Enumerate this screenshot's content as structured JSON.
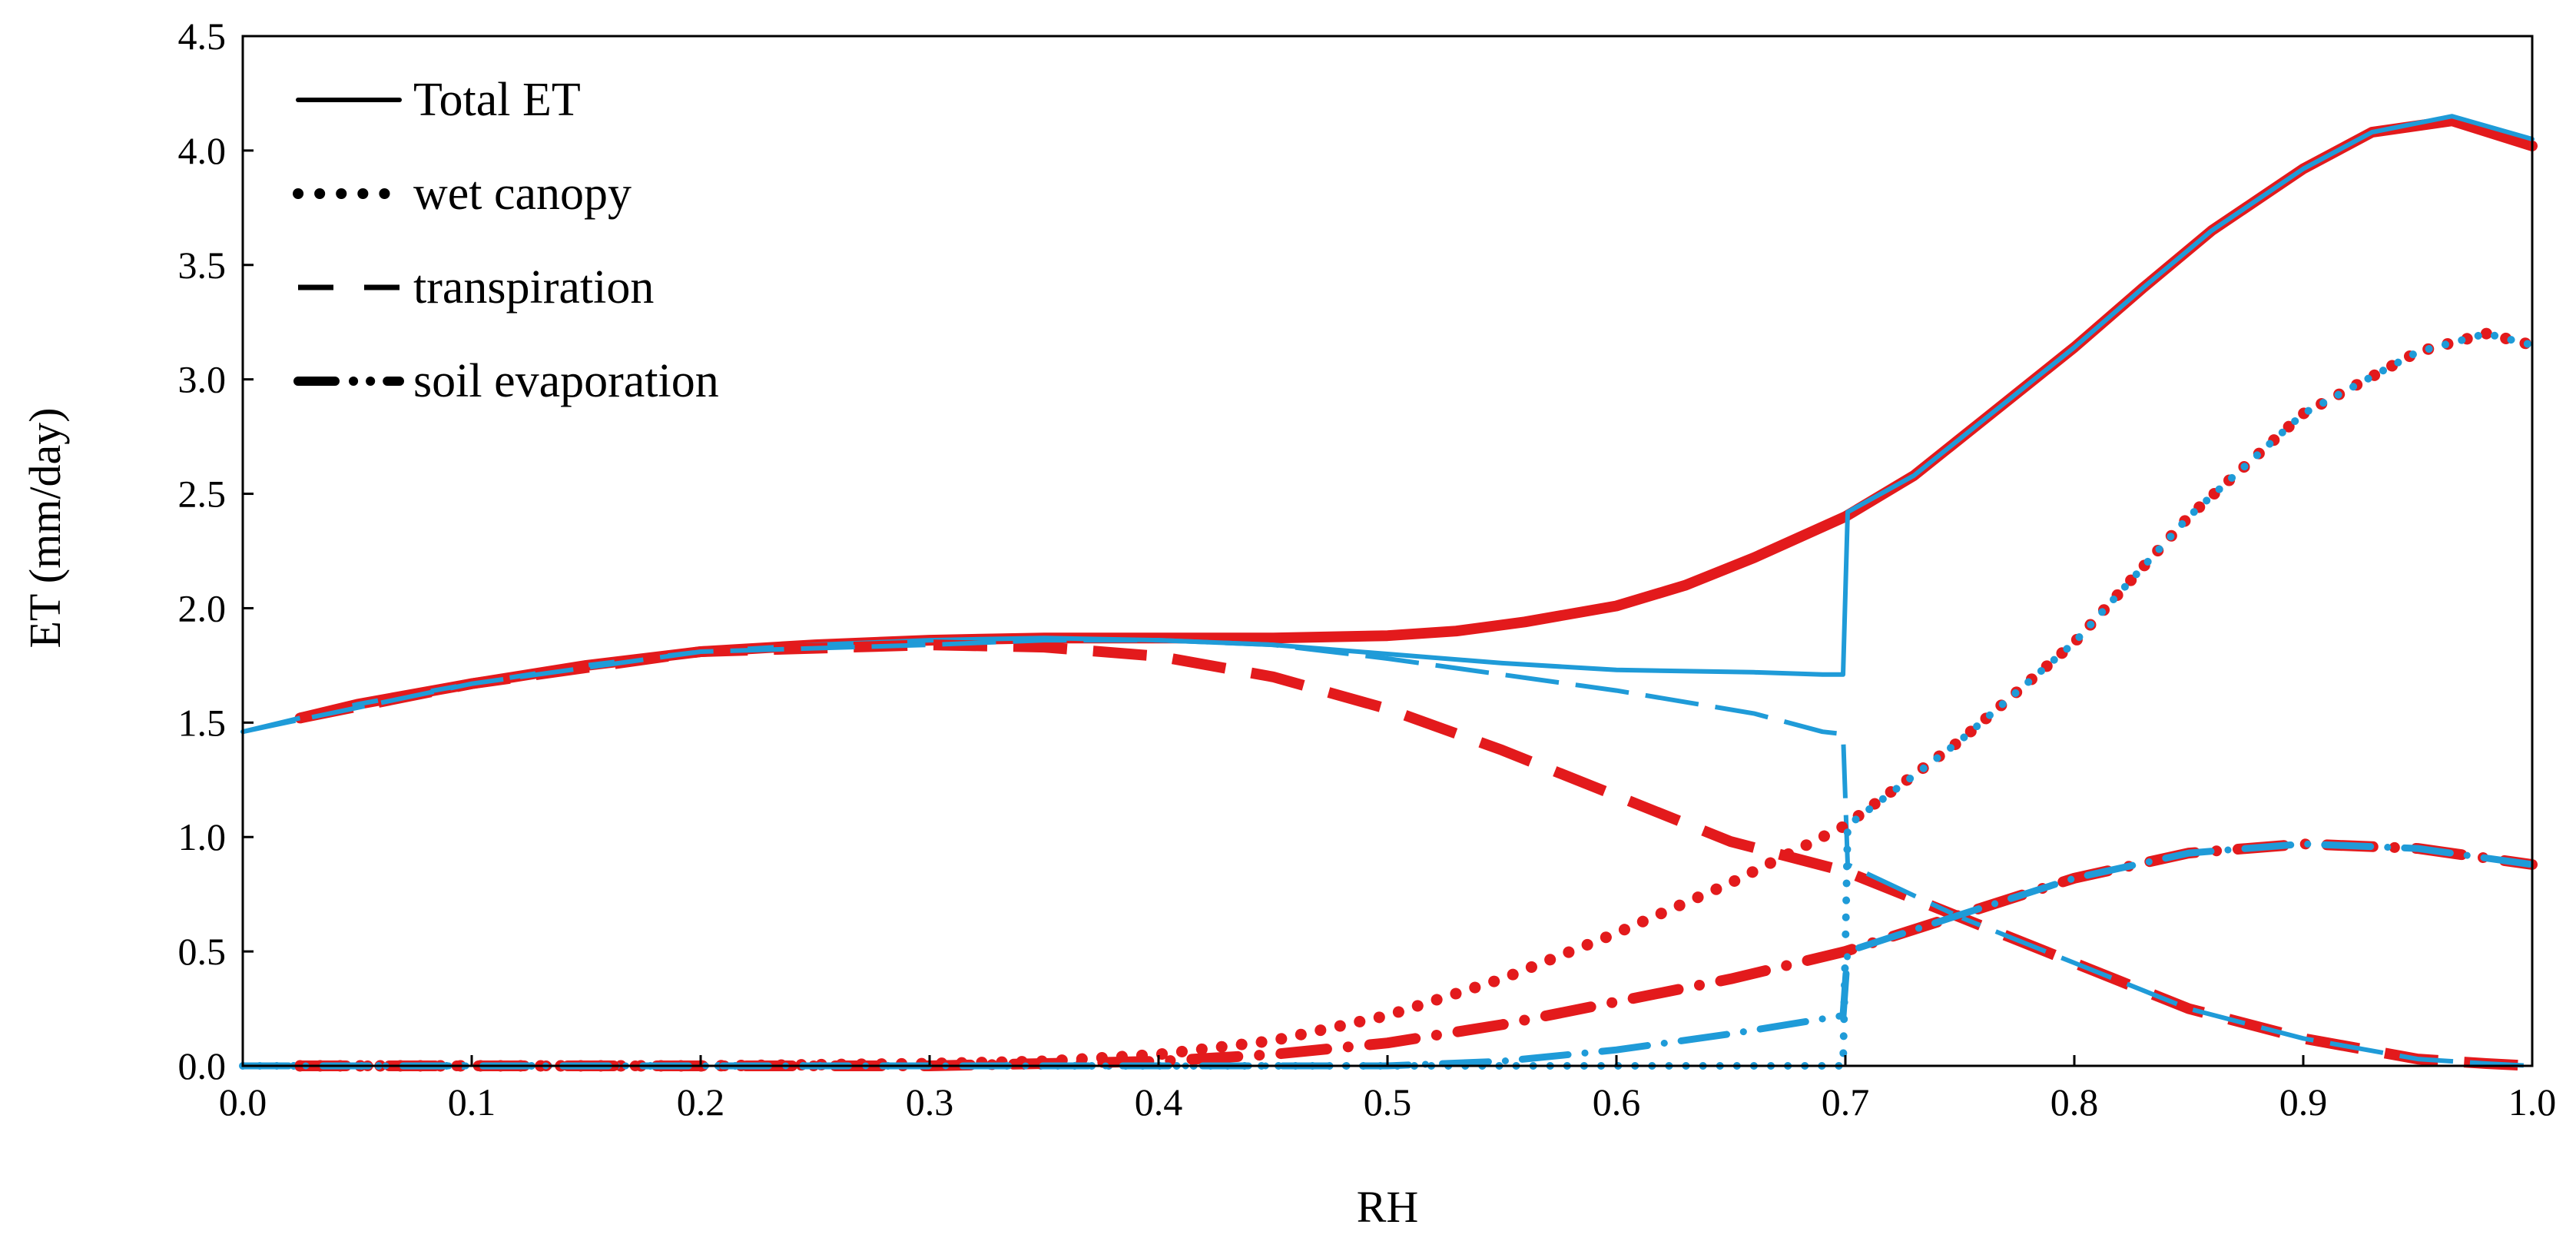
{
  "chart_data": {
    "type": "line",
    "title": "",
    "xlabel": "RH",
    "ylabel": "ET (mm/day)",
    "xlim": [
      0,
      1
    ],
    "ylim": [
      0,
      4.5
    ],
    "xticks": [
      0.0,
      0.1,
      0.2,
      0.3,
      0.4,
      0.5,
      0.6,
      0.7,
      0.8,
      0.9,
      1.0
    ],
    "yticks": [
      0.0,
      0.5,
      1.0,
      1.5,
      2.0,
      2.5,
      3.0,
      3.5,
      4.0,
      4.5
    ],
    "xtick_labels": [
      "0.0",
      "0.1",
      "0.2",
      "0.3",
      "0.4",
      "0.5",
      "0.6",
      "0.7",
      "0.8",
      "0.9",
      "1.0"
    ],
    "ytick_labels": [
      "0.0",
      "0.5",
      "1.0",
      "1.5",
      "2.0",
      "2.5",
      "3.0",
      "3.5",
      "4.0",
      "4.5"
    ],
    "colors": {
      "red": "#e31a1c",
      "blue": "#1f9bd8"
    },
    "legend": {
      "placement": "top-left",
      "entries": [
        {
          "label": "Total ET",
          "style": "solid"
        },
        {
          "label": "wet canopy",
          "style": "dotted"
        },
        {
          "label": "transpiration",
          "style": "dashed"
        },
        {
          "label": "soil evaporation",
          "style": "dashdot"
        }
      ]
    },
    "series": [
      {
        "name": "Total ET (red)",
        "component": "Total ET",
        "color": "red",
        "style": "solid",
        "weight": "thick",
        "x": [
          0.025,
          0.05,
          0.1,
          0.15,
          0.2,
          0.25,
          0.3,
          0.35,
          0.4,
          0.45,
          0.5,
          0.53,
          0.56,
          0.6,
          0.63,
          0.66,
          0.7,
          0.73,
          0.76,
          0.8,
          0.83,
          0.86,
          0.9,
          0.93,
          0.965,
          1.0
        ],
        "y": [
          1.52,
          1.58,
          1.67,
          1.75,
          1.81,
          1.84,
          1.86,
          1.87,
          1.87,
          1.87,
          1.88,
          1.9,
          1.94,
          2.01,
          2.1,
          2.22,
          2.4,
          2.58,
          2.82,
          3.14,
          3.4,
          3.65,
          3.92,
          4.08,
          4.13,
          4.02
        ]
      },
      {
        "name": "Total ET (blue)",
        "component": "Total ET",
        "color": "blue",
        "style": "solid",
        "weight": "thin",
        "x": [
          0.0,
          0.05,
          0.1,
          0.15,
          0.2,
          0.25,
          0.3,
          0.35,
          0.4,
          0.45,
          0.5,
          0.55,
          0.6,
          0.66,
          0.69,
          0.699,
          0.701,
          0.73,
          0.76,
          0.8,
          0.83,
          0.86,
          0.9,
          0.93,
          0.965,
          1.0
        ],
        "y": [
          1.46,
          1.58,
          1.67,
          1.75,
          1.81,
          1.84,
          1.86,
          1.87,
          1.86,
          1.84,
          1.8,
          1.76,
          1.73,
          1.72,
          1.71,
          1.71,
          2.42,
          2.58,
          2.82,
          3.14,
          3.4,
          3.65,
          3.92,
          4.08,
          4.15,
          4.05
        ]
      },
      {
        "name": "transpiration (red)",
        "component": "transpiration",
        "color": "red",
        "style": "dashed",
        "weight": "thick",
        "x": [
          0.025,
          0.1,
          0.2,
          0.3,
          0.35,
          0.4,
          0.45,
          0.5,
          0.55,
          0.6,
          0.65,
          0.7,
          0.75,
          0.8,
          0.85,
          0.9,
          0.95,
          0.98,
          1.0
        ],
        "y": [
          1.52,
          1.67,
          1.81,
          1.84,
          1.83,
          1.79,
          1.7,
          1.56,
          1.38,
          1.18,
          0.98,
          0.85,
          0.65,
          0.45,
          0.25,
          0.12,
          0.03,
          0.01,
          0.0
        ]
      },
      {
        "name": "transpiration (blue)",
        "component": "transpiration",
        "color": "blue",
        "style": "dashed",
        "weight": "thin",
        "x": [
          0.0,
          0.1,
          0.2,
          0.3,
          0.35,
          0.4,
          0.45,
          0.5,
          0.55,
          0.6,
          0.66,
          0.69,
          0.699,
          0.701,
          0.75,
          0.8,
          0.85,
          0.9,
          0.95,
          0.98,
          1.0
        ],
        "y": [
          1.46,
          1.67,
          1.81,
          1.84,
          1.86,
          1.86,
          1.84,
          1.78,
          1.71,
          1.64,
          1.54,
          1.46,
          1.45,
          0.88,
          0.65,
          0.45,
          0.25,
          0.12,
          0.03,
          0.01,
          0.0
        ]
      },
      {
        "name": "wet canopy (red)",
        "component": "wet canopy",
        "color": "red",
        "style": "dotted",
        "weight": "thick",
        "x": [
          0.025,
          0.1,
          0.2,
          0.3,
          0.35,
          0.4,
          0.45,
          0.5,
          0.55,
          0.6,
          0.65,
          0.7,
          0.75,
          0.8,
          0.85,
          0.9,
          0.95,
          0.98,
          1.0
        ],
        "y": [
          0.0,
          0.0,
          0.0,
          0.01,
          0.02,
          0.05,
          0.11,
          0.22,
          0.38,
          0.58,
          0.8,
          1.05,
          1.42,
          1.85,
          2.4,
          2.85,
          3.12,
          3.2,
          3.15
        ]
      },
      {
        "name": "wet canopy (blue)",
        "component": "wet canopy",
        "color": "blue",
        "style": "dotted",
        "weight": "thin",
        "x": [
          0.0,
          0.1,
          0.2,
          0.3,
          0.4,
          0.5,
          0.6,
          0.65,
          0.699,
          0.701,
          0.75,
          0.8,
          0.85,
          0.9,
          0.95,
          0.98,
          1.0
        ],
        "y": [
          0.0,
          0.0,
          0.0,
          0.0,
          0.0,
          0.0,
          0.0,
          0.0,
          0.0,
          1.05,
          1.42,
          1.85,
          2.4,
          2.85,
          3.12,
          3.2,
          3.15
        ]
      },
      {
        "name": "soil evaporation (red)",
        "component": "soil evaporation",
        "color": "red",
        "style": "dashdot",
        "weight": "thick",
        "x": [
          0.025,
          0.1,
          0.2,
          0.3,
          0.4,
          0.45,
          0.5,
          0.55,
          0.6,
          0.65,
          0.7,
          0.75,
          0.8,
          0.85,
          0.9,
          0.95,
          1.0
        ],
        "y": [
          0.0,
          0.0,
          0.0,
          0.0,
          0.02,
          0.05,
          0.1,
          0.18,
          0.28,
          0.38,
          0.5,
          0.66,
          0.82,
          0.93,
          0.97,
          0.95,
          0.88
        ]
      },
      {
        "name": "soil evaporation (blue)",
        "component": "soil evaporation",
        "color": "blue",
        "style": "dashdot",
        "weight": "thin",
        "x": [
          0.0,
          0.1,
          0.2,
          0.3,
          0.4,
          0.5,
          0.55,
          0.6,
          0.65,
          0.699,
          0.701,
          0.75,
          0.8,
          0.85,
          0.9,
          0.95,
          1.0
        ],
        "y": [
          0.0,
          0.0,
          0.0,
          0.0,
          0.0,
          0.0,
          0.02,
          0.07,
          0.14,
          0.22,
          0.5,
          0.66,
          0.82,
          0.93,
          0.97,
          0.95,
          0.88
        ]
      }
    ]
  }
}
